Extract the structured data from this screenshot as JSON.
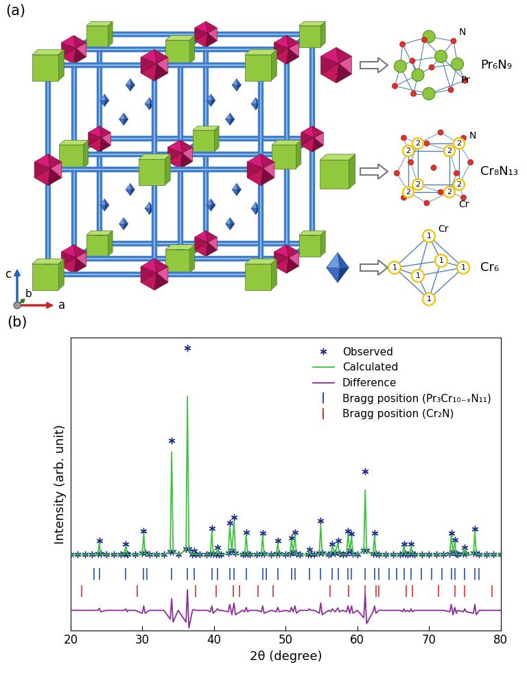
{
  "diagram": {
    "panel_label": "(a)",
    "axis_labels": [
      "a",
      "b",
      "c"
    ],
    "clusters": [
      {
        "name": "Pr₆N₉",
        "atom_labels": [
          "N",
          "Pr"
        ]
      },
      {
        "name": "Cr₈N₁₃",
        "atom_labels": [
          "N",
          "Cr"
        ],
        "site_label": "2"
      },
      {
        "name": "Cr₆",
        "atom_labels": [
          "Cr"
        ],
        "site_label": "1"
      }
    ]
  },
  "chart_data": {
    "type": "line",
    "panel_label": "(b)",
    "x_label": "2θ (degree)",
    "y_label": "Intensity (arb. unit)",
    "xlim": [
      20,
      80
    ],
    "xticks": [
      20,
      30,
      40,
      50,
      60,
      70,
      80
    ],
    "ylim": [
      0,
      100
    ],
    "yticks": [],
    "tick_labels": "x",
    "legend": "upper right",
    "x": [
      20,
      21,
      22,
      23,
      23.8,
      24.0,
      24.2,
      25,
      26,
      27,
      27.5,
      27.7,
      27.9,
      28,
      29,
      30.0,
      30.2,
      30.4,
      31,
      32,
      33,
      33.9,
      34.1,
      34.3,
      35,
      36.1,
      36.3,
      36.5,
      37.0,
      37.2,
      37.4,
      38,
      39,
      39.5,
      39.7,
      39.9,
      40.3,
      40.5,
      40.7,
      41,
      42.0,
      42.2,
      42.5,
      42.8,
      43.0,
      44,
      44.3,
      44.5,
      44.7,
      45,
      46,
      46.6,
      46.8,
      47.0,
      48,
      48.7,
      48.9,
      49.1,
      50,
      50.6,
      50.8,
      51.05,
      51.3,
      51.5,
      52,
      53.1,
      53.3,
      53.5,
      54,
      54.7,
      54.9,
      55.1,
      56,
      56.3,
      56.5,
      56.9,
      57.3,
      57.5,
      58,
      58.5,
      58.7,
      58.95,
      59.2,
      59.4,
      60,
      60.9,
      61.1,
      61.3,
      62.2,
      62.4,
      62.6,
      63,
      64,
      65,
      66,
      66.3,
      66.5,
      66.7,
      67,
      67.3,
      67.5,
      67.7,
      68,
      69,
      70,
      71,
      72,
      72.9,
      73.1,
      73.35,
      73.6,
      73.8,
      74,
      74.8,
      75.0,
      75.2,
      76.2,
      76.4,
      76.6,
      77,
      78,
      79,
      80
    ],
    "series": [
      {
        "name": "Observed",
        "type": "scatter",
        "marker": "asterisk",
        "color": "#1a2a8c",
        "values": [
          26,
          26,
          26,
          26,
          26.3,
          30.7,
          26.3,
          26,
          26,
          26,
          26.3,
          29.5,
          26.3,
          26,
          26,
          26.5,
          34,
          26.5,
          26,
          26,
          26,
          27,
          65,
          27,
          26,
          28,
          96.6,
          28,
          26,
          27.3,
          26,
          26,
          26,
          26.3,
          35,
          26.3,
          26,
          28.4,
          26,
          26,
          26.5,
          36.8,
          27.5,
          38.6,
          26.5,
          26,
          26.3,
          33.6,
          26.3,
          26,
          26,
          26.3,
          33.4,
          26.3,
          26,
          26.2,
          30.7,
          26.2,
          26,
          26.2,
          31.8,
          27,
          33.6,
          26.3,
          26,
          26,
          27.7,
          26,
          26,
          26.5,
          37.5,
          26.5,
          26,
          26.2,
          29.5,
          26.5,
          30.7,
          26.3,
          26,
          26.3,
          34,
          27.5,
          33,
          26.3,
          26,
          27.5,
          54.5,
          27.5,
          26.3,
          33.4,
          26.3,
          26,
          26,
          26,
          26,
          26.2,
          29.5,
          26.2,
          26,
          26.2,
          29.5,
          26.2,
          26,
          26,
          26,
          26,
          26,
          26.3,
          33.4,
          27,
          31,
          26.3,
          26,
          26.2,
          28.4,
          26.2,
          26.5,
          34.8,
          26.5,
          26,
          26,
          26,
          26
        ]
      },
      {
        "name": "Calculated",
        "type": "line",
        "line_style": "solid",
        "color": "#3cc43c",
        "values": [
          26,
          26,
          26,
          26,
          26,
          30,
          26,
          26,
          26,
          26,
          26,
          29,
          26,
          26,
          26,
          26.2,
          33,
          26.2,
          26,
          26,
          26,
          27,
          61,
          27,
          26,
          27.5,
          80,
          27.5,
          26,
          27,
          26,
          26,
          26,
          26,
          34,
          26,
          26,
          28,
          26,
          26,
          26.3,
          35.5,
          27.2,
          37,
          26.3,
          26,
          26,
          33,
          26,
          26,
          26,
          26,
          32.5,
          26,
          26,
          26,
          30,
          26,
          26,
          26,
          31,
          26.8,
          33,
          26,
          26,
          26,
          27.3,
          26,
          26,
          26.2,
          36,
          26.2,
          26,
          26,
          29,
          26.3,
          30,
          26,
          26,
          26,
          33,
          27.2,
          32,
          26,
          26,
          27,
          48,
          27,
          26,
          32.5,
          26,
          26,
          26,
          26,
          26,
          26,
          29,
          26,
          26,
          26,
          29,
          26,
          26,
          26,
          26,
          26,
          26,
          26,
          32.5,
          26.8,
          30.5,
          26,
          26,
          26,
          28,
          26,
          26.2,
          34,
          26.2,
          26,
          26,
          26,
          26
        ]
      },
      {
        "name": "Difference",
        "type": "line",
        "line_style": "solid",
        "color": "#8b2a9b",
        "values": [
          7,
          7,
          7,
          7,
          7,
          7.7,
          6.5,
          7,
          7,
          7,
          7,
          7.5,
          6.5,
          7,
          7,
          6,
          8.5,
          6,
          7,
          7,
          7,
          4,
          11,
          3,
          7,
          3,
          14,
          1,
          7,
          7.3,
          7,
          7,
          7,
          6.5,
          8.5,
          6,
          7,
          7.5,
          7,
          7,
          6.5,
          9,
          5.5,
          9.5,
          5.5,
          7,
          6.5,
          8,
          6.5,
          7,
          7,
          6.5,
          8.5,
          6,
          7,
          6.5,
          8,
          6.5,
          7,
          6.5,
          8,
          6.5,
          8.5,
          6,
          7,
          7,
          7.5,
          7,
          7,
          6,
          9.5,
          5.5,
          7,
          6.5,
          7.5,
          6.5,
          7.8,
          6.5,
          7,
          6.5,
          8.5,
          6,
          8.5,
          6,
          7,
          4.5,
          12.5,
          2.5,
          6.5,
          8.5,
          6,
          7,
          7,
          7,
          7,
          6.5,
          7.5,
          6.5,
          7,
          6.5,
          7.5,
          6.5,
          7,
          7,
          7,
          7,
          7,
          6.5,
          9,
          5.5,
          8,
          6,
          7,
          6.5,
          7.5,
          6.5,
          6,
          9,
          5.5,
          7,
          7,
          7,
          7
        ]
      }
    ],
    "reflections": [
      {
        "name": "Bragg position (Pr₃Cr₁₀₋ₓN₁₁)",
        "color": "#1f4fbf",
        "positions": [
          23.3,
          24.0,
          27.7,
          30.2,
          30.6,
          34.1,
          36.3,
          37.2,
          39.7,
          40.5,
          42.2,
          42.8,
          44.5,
          46.8,
          47.3,
          48.9,
          50.8,
          51.3,
          53.3,
          54.9,
          56.5,
          57.3,
          58.7,
          59.2,
          61.1,
          62.4,
          63.0,
          64.4,
          65.5,
          66.5,
          67.5,
          68.9,
          70.4,
          71.8,
          73.1,
          73.6,
          75.0,
          76.4,
          77.0
        ]
      },
      {
        "name": "Bragg position (Cr₂N)",
        "color": "#e0302a",
        "positions": [
          21.5,
          29.3,
          37.4,
          40.3,
          42.7,
          43.6,
          46.1,
          48.3,
          56.2,
          58.8,
          61.1,
          62.6,
          63.0,
          66.8,
          67.7,
          71.3,
          73.6,
          75.0,
          78.8
        ]
      }
    ]
  }
}
